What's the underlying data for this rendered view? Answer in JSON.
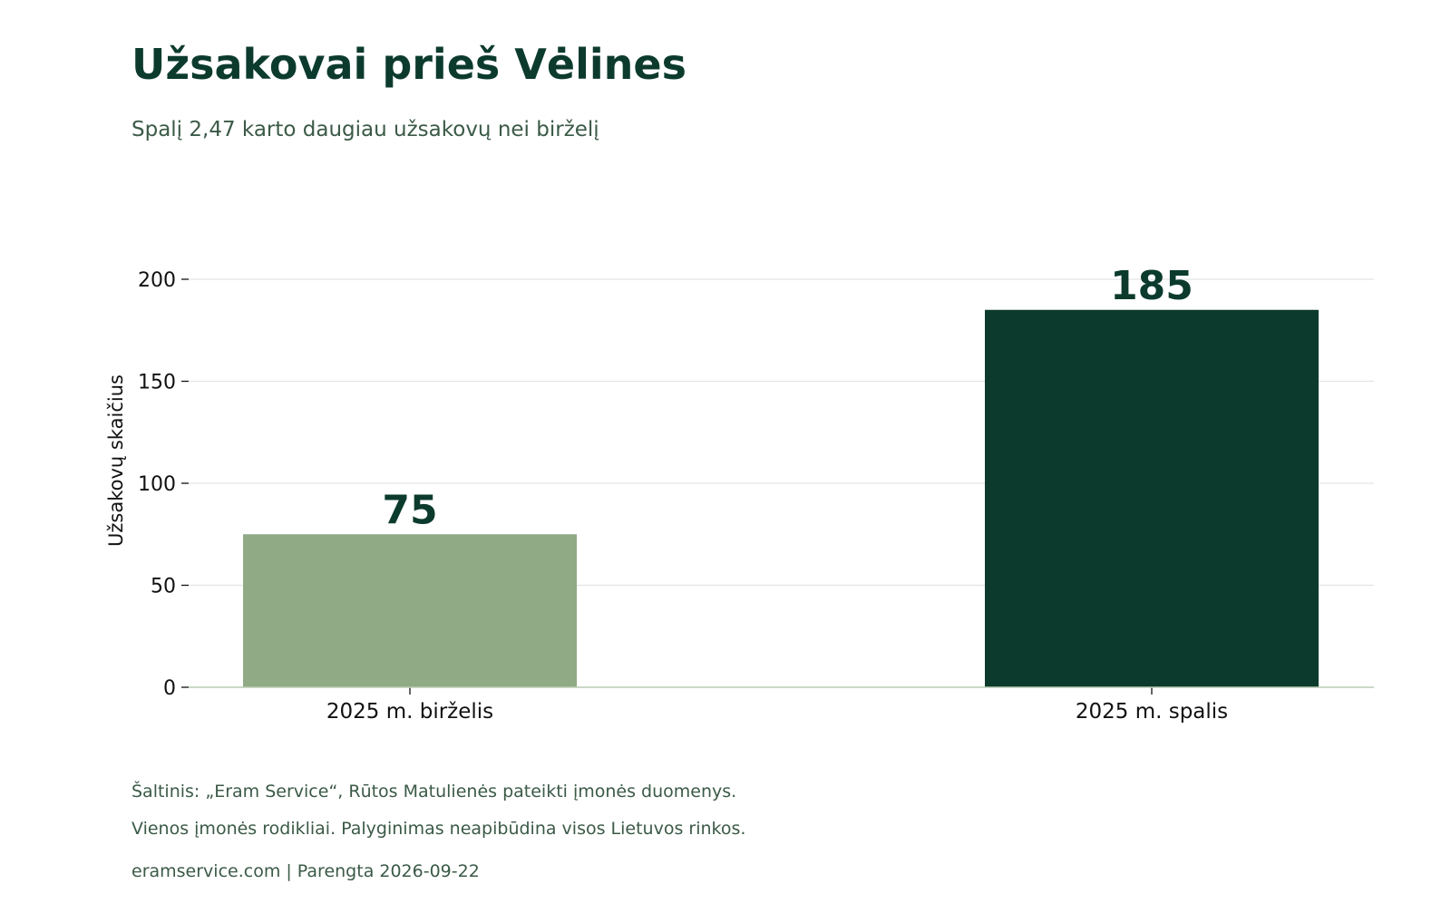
{
  "chart_data": {
    "type": "bar",
    "title": "Užsakovai prieš Vėlines",
    "subtitle": "Spalį 2,47 karto daugiau užsakovų nei birželį",
    "categories": [
      "2025 m. birželis",
      "2025 m. spalis"
    ],
    "values": [
      75,
      185
    ],
    "data_labels": [
      "75",
      "185"
    ],
    "bar_colors": [
      "#90aa86",
      "#0c3b2e"
    ],
    "label_color": "#0c3b2e",
    "xlabel": "",
    "ylabel": "Užsakovų skaičius",
    "ylim": [
      0,
      200
    ],
    "yticks": [
      0,
      50,
      100,
      150,
      200
    ],
    "ytick_labels": [
      "0",
      "50",
      "100",
      "150",
      "200"
    ],
    "grid": true,
    "legend": "none"
  },
  "footer": {
    "source": "Šaltinis: „Eram Service“, Rūtos Matulienės pateikti įmonės duomenys.",
    "note": "Vienos įmonės rodikliai. Palyginimas neapibūdina visos Lietuvos rinkos.",
    "meta": "eramservice.com  |  Parengta 2026-09-22"
  },
  "colors": {
    "title": "#0c3b2e",
    "subtitle": "#3b5a47",
    "gridline": "#e3e3e3",
    "baseline": "#b9cbb4"
  }
}
